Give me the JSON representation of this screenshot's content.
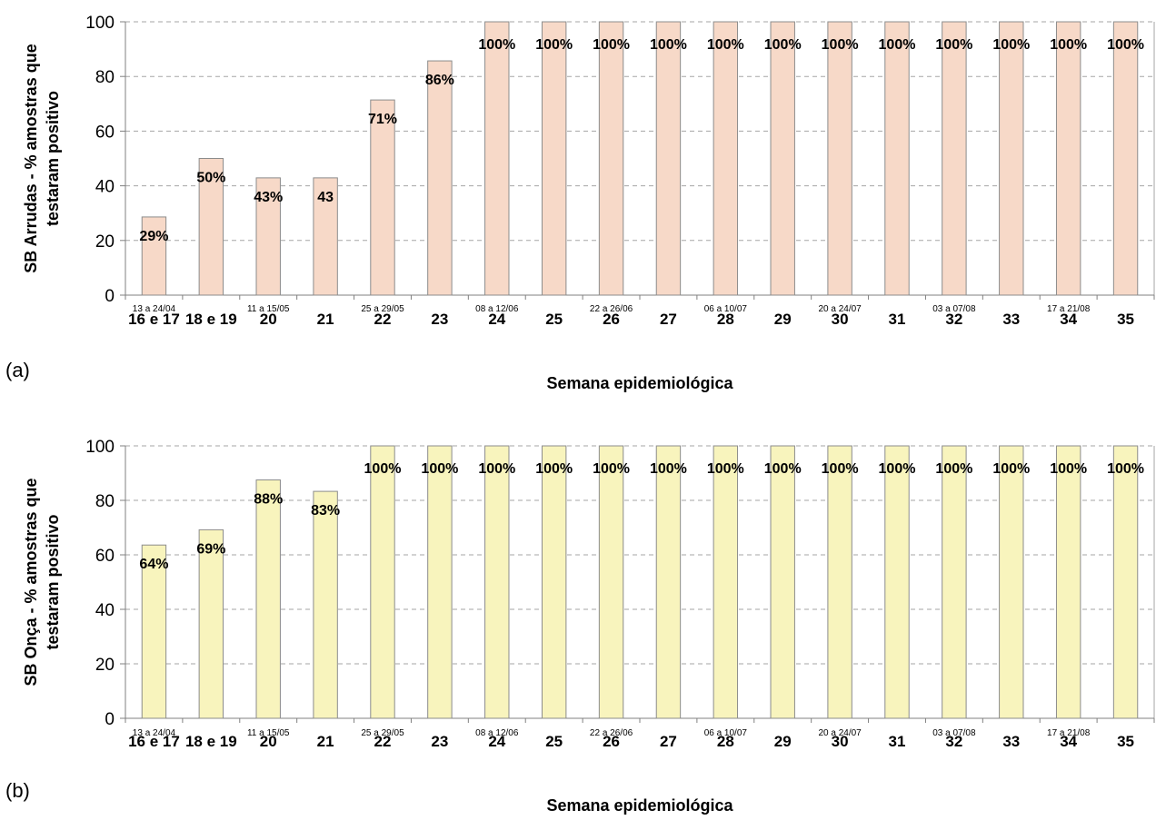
{
  "panels": [
    {
      "label": "(a)"
    },
    {
      "label": "(b)"
    }
  ],
  "chart_data": [
    {
      "type": "bar",
      "title": "",
      "ylabel_line1": "SB Arrudas - % amostras que",
      "ylabel_line2": "testaram positivo",
      "xlabel": "Semana epidemiológica",
      "ylim": [
        0,
        100
      ],
      "yticks": [
        0,
        20,
        40,
        60,
        80,
        100
      ],
      "grid": true,
      "bar_color": "#f7d9c8",
      "categories": [
        "16 e 17",
        "18 e 19",
        "20",
        "21",
        "22",
        "23",
        "24",
        "25",
        "26",
        "27",
        "28",
        "29",
        "30",
        "31",
        "32",
        "33",
        "34",
        "35"
      ],
      "date_labels": [
        "13 a 24/04",
        "",
        "11 a 15/05",
        "",
        "25 a 29/05",
        "",
        "08 a 12/06",
        "",
        "22 a 26/06",
        "",
        "06 a 10/07",
        "",
        "20 a 24/07",
        "",
        "03 a 07/08",
        "",
        "17 a 21/08",
        ""
      ],
      "values": [
        28.6,
        50,
        42.9,
        42.9,
        71.4,
        85.7,
        100,
        100,
        100,
        100,
        100,
        100,
        100,
        100,
        100,
        100,
        100,
        100
      ],
      "data_labels": [
        "29%",
        "50%",
        "43%",
        "43",
        "71%",
        "86%",
        "100%",
        "100%",
        "100%",
        "100%",
        "100%",
        "100%",
        "100%",
        "100%",
        "100%",
        "100%",
        "100%",
        "100%"
      ]
    },
    {
      "type": "bar",
      "title": "",
      "ylabel_line1": "SB Onça - % amostras que",
      "ylabel_line2": "testaram positivo",
      "xlabel": "Semana epidemiológica",
      "ylim": [
        0,
        100
      ],
      "yticks": [
        0,
        20,
        40,
        60,
        80,
        100
      ],
      "grid": true,
      "bar_color": "#f8f4bd",
      "categories": [
        "16 e 17",
        "18 e 19",
        "20",
        "21",
        "22",
        "23",
        "24",
        "25",
        "26",
        "27",
        "28",
        "29",
        "30",
        "31",
        "32",
        "33",
        "34",
        "35"
      ],
      "date_labels": [
        "13 a 24/04",
        "",
        "11 a 15/05",
        "",
        "25 a 29/05",
        "",
        "08 a 12/06",
        "",
        "22 a 26/06",
        "",
        "06 a 10/07",
        "",
        "20 a 24/07",
        "",
        "03 a 07/08",
        "",
        "17 a 21/08",
        ""
      ],
      "values": [
        63.6,
        69.2,
        87.5,
        83.3,
        100,
        100,
        100,
        100,
        100,
        100,
        100,
        100,
        100,
        100,
        100,
        100,
        100,
        100
      ],
      "data_labels": [
        "64%",
        "69%",
        "88%",
        "83%",
        "100%",
        "100%",
        "100%",
        "100%",
        "100%",
        "100%",
        "100%",
        "100%",
        "100%",
        "100%",
        "100%",
        "100%",
        "100%",
        "100%"
      ]
    }
  ]
}
